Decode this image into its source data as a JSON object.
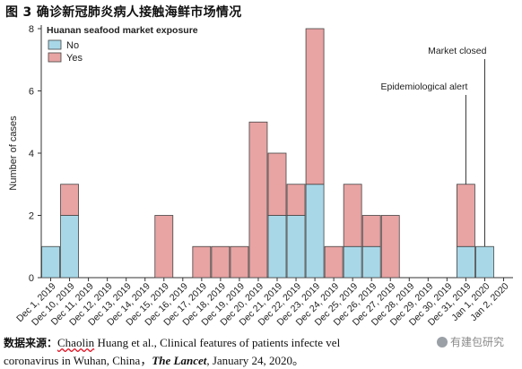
{
  "figure_title": "图 3  确诊新冠肺炎病人接触海鲜市场情况",
  "source": {
    "label": "数据来源：",
    "author": "Chaolin",
    "text1": " Huang et al., Clinical features of patients infecte",
    "text2": "vel",
    "line2": "coronavirus in Wuhan, China，",
    "journal": "The Lancet",
    "date": ", January 24, 2020。"
  },
  "watermark": "有建包研究",
  "colors": {
    "no": "#a8d8e8",
    "yes": "#e8a3a3",
    "axis": "#333333"
  },
  "chart_data": {
    "type": "bar",
    "stacked": true,
    "legend_title": "Huanan seafood market exposure",
    "legend_position": "top-left",
    "ylabel": "Number of cases",
    "xlabel": "",
    "ylim": [
      0,
      8
    ],
    "yticks": [
      0,
      2,
      4,
      6,
      8
    ],
    "categories": [
      "Dec 1, 2019",
      "Dec 10, 2019",
      "Dec 11, 2019",
      "Dec 12, 2019",
      "Dec 13, 2019",
      "Dec 14, 2019",
      "Dec 15, 2019",
      "Dec 16, 2019",
      "Dec 17, 2019",
      "Dec 18, 2019",
      "Dec 19, 2019",
      "Dec 20, 2019",
      "Dec 21, 2019",
      "Dec 22, 2019",
      "Dec 23, 2019",
      "Dec 24, 2019",
      "Dec 25, 2019",
      "Dec 26, 2019",
      "Dec 27, 2019",
      "Dec 28, 2019",
      "Dec 29, 2019",
      "Dec 30, 2019",
      "Dec 31, 2019",
      "Jan 1, 2020",
      "Jan 2, 2020"
    ],
    "series": [
      {
        "name": "No",
        "values": [
          1,
          2,
          0,
          0,
          0,
          0,
          0,
          0,
          0,
          0,
          0,
          0,
          2,
          2,
          3,
          0,
          1,
          1,
          0,
          0,
          0,
          0,
          1,
          1,
          0
        ]
      },
      {
        "name": "Yes",
        "values": [
          0,
          1,
          0,
          0,
          0,
          0,
          2,
          0,
          1,
          1,
          1,
          5,
          2,
          1,
          5,
          1,
          2,
          1,
          2,
          0,
          0,
          0,
          2,
          0,
          0
        ]
      }
    ],
    "annotations": [
      {
        "text": "Epidemiological alert",
        "category": "Dec 31, 2019"
      },
      {
        "text": "Market closed",
        "category": "Jan 1, 2020"
      }
    ]
  }
}
